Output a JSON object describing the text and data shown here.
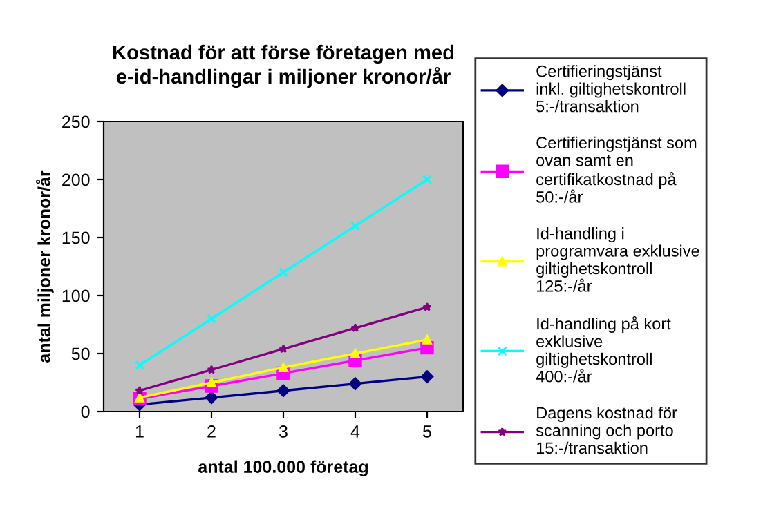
{
  "chart_data": {
    "type": "line",
    "title": "Kostnad för att förse företagen med e-id-handlingar i miljoner kronor/år",
    "xlabel": "antal 100.000 företag",
    "ylabel": "antal miljoner kronor/år",
    "categories": [
      "1",
      "2",
      "3",
      "4",
      "5"
    ],
    "ylim": [
      0,
      250
    ],
    "yticks": [
      0,
      50,
      100,
      150,
      200,
      250
    ],
    "grid": false,
    "legend": "right",
    "series": [
      {
        "name": "Certifieringstjänst inkl. giltighetskontroll 5:-/transaktion",
        "color": "#000080",
        "marker": "diamond",
        "values": [
          6,
          12,
          18,
          24,
          30
        ]
      },
      {
        "name": "Certifieringstjänst som ovan samt en certifikatkostnad på 50:-/år",
        "color": "#ff00ff",
        "marker": "square",
        "values": [
          11,
          22,
          33,
          44,
          55
        ]
      },
      {
        "name": "Id-handling i programvara exklusive giltighetskontroll 125:-/år",
        "color": "#ffff00",
        "marker": "triangle",
        "values": [
          12,
          25,
          38,
          50,
          62
        ]
      },
      {
        "name": "Id-handling på kort exklusive giltighetskontroll 400:-/år",
        "color": "#00ffff",
        "marker": "cross",
        "values": [
          40,
          80,
          120,
          160,
          200
        ]
      },
      {
        "name": "Dagens kostnad för scanning och porto 15:-/transaktion",
        "color": "#800080",
        "marker": "star",
        "values": [
          18,
          36,
          54,
          72,
          90
        ]
      }
    ]
  }
}
